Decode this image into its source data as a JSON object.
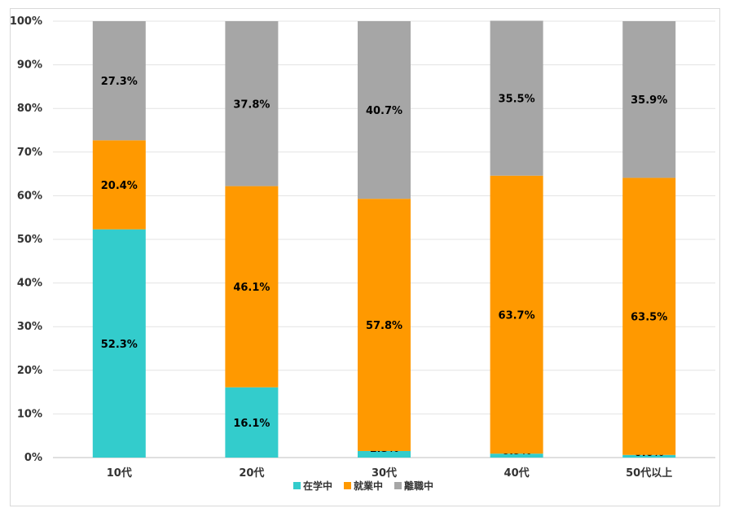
{
  "chart_data": {
    "type": "stacked-bar-100",
    "categories": [
      "10代",
      "20代",
      "30代",
      "40代",
      "50代以上"
    ],
    "series": [
      {
        "name": "在学中",
        "color": "#33cccc",
        "values": [
          52.3,
          16.1,
          1.5,
          0.9,
          0.6
        ],
        "labels": [
          "52.3%",
          "16.1%",
          "1.5%",
          "0.9%",
          "0.6%"
        ]
      },
      {
        "name": "就業中",
        "color": "#ff9900",
        "values": [
          20.4,
          46.1,
          57.8,
          63.7,
          63.5
        ],
        "labels": [
          "20.4%",
          "46.1%",
          "57.8%",
          "63.7%",
          "63.5%"
        ]
      },
      {
        "name": "離職中",
        "color": "#a6a6a6",
        "values": [
          27.3,
          37.8,
          40.7,
          35.5,
          35.9
        ],
        "labels": [
          "27.3%",
          "37.8%",
          "40.7%",
          "35.5%",
          "35.9%"
        ]
      }
    ],
    "y_ticks": [
      "0%",
      "10%",
      "20%",
      "30%",
      "40%",
      "50%",
      "60%",
      "70%",
      "80%",
      "90%",
      "100%"
    ],
    "ylim": [
      0,
      100
    ],
    "grid": true,
    "legend": "bottom-center"
  }
}
